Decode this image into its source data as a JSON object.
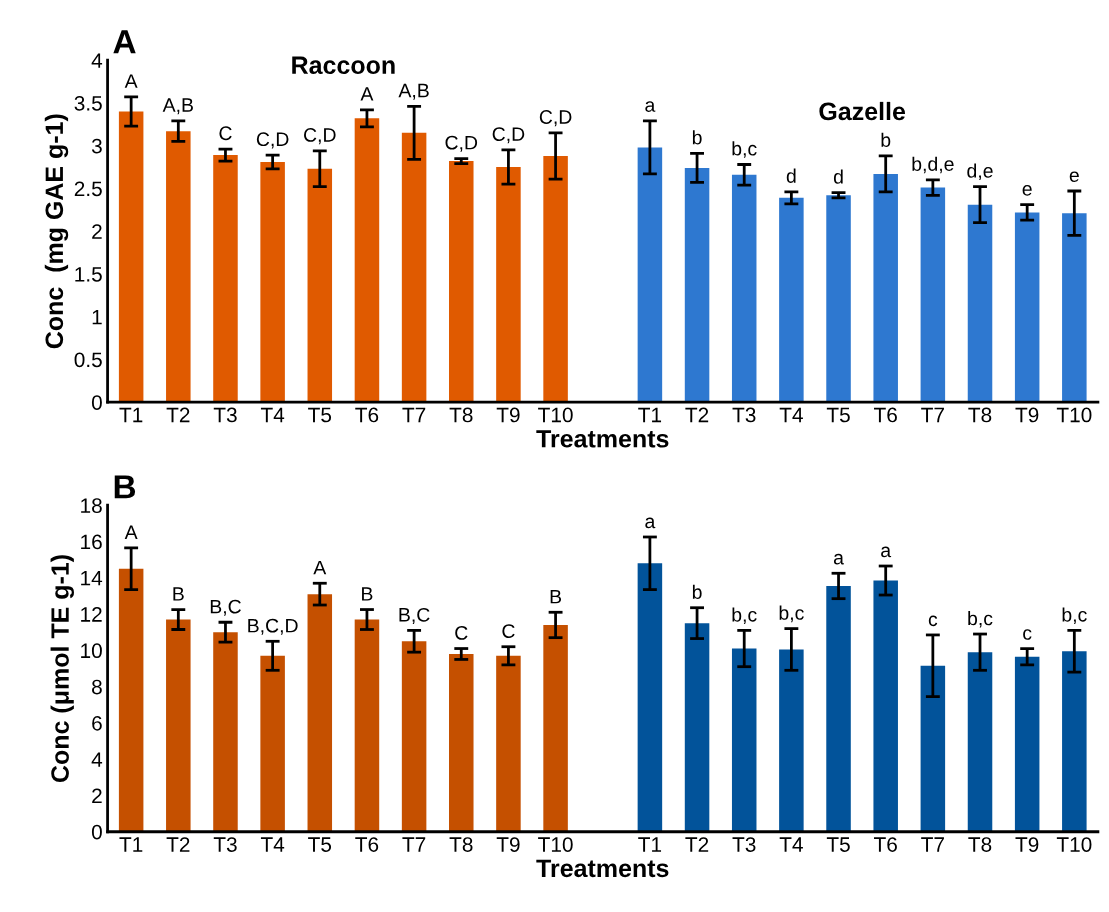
{
  "chart_data": [
    {
      "type": "bar",
      "xlabel": "Treatments",
      "ylabel": "Conc  (mg GAE g-1)",
      "annotations": [
        "A"
      ],
      "categories": [
        "T1",
        "T2",
        "T3",
        "T4",
        "T5",
        "T6",
        "T7",
        "T8",
        "T9",
        "T10",
        null,
        "T1",
        "T2",
        "T3",
        "T4",
        "T5",
        "T6",
        "T7",
        "T8",
        "T9",
        "T10"
      ],
      "series": [
        {
          "name": "Raccoon",
          "color": "#e05a00",
          "values": [
            3.4,
            3.17,
            2.89,
            2.81,
            2.73,
            3.32,
            3.15,
            2.82,
            2.75,
            2.88,
            null,
            null,
            null,
            null,
            null,
            null,
            null,
            null,
            null,
            null,
            null
          ],
          "errors": [
            0.17,
            0.12,
            0.07,
            0.08,
            0.21,
            0.1,
            0.31,
            0.03,
            0.2,
            0.27,
            null,
            null,
            null,
            null,
            null,
            null,
            null,
            null,
            null,
            null,
            null
          ],
          "value_labels": [
            "A",
            "A,B",
            "C",
            "C,D",
            "C,D",
            "A",
            "A,B",
            "C,D",
            "C,D",
            "C,D",
            null,
            null,
            null,
            null,
            null,
            null,
            null,
            null,
            null,
            null,
            null
          ]
        },
        {
          "name": "Gazelle",
          "color": "#2e78d0",
          "values": [
            null,
            null,
            null,
            null,
            null,
            null,
            null,
            null,
            null,
            null,
            null,
            2.98,
            2.74,
            2.66,
            2.39,
            2.42,
            2.67,
            2.51,
            2.31,
            2.22,
            2.21
          ],
          "errors": [
            null,
            null,
            null,
            null,
            null,
            null,
            null,
            null,
            null,
            null,
            null,
            0.31,
            0.17,
            0.12,
            0.07,
            0.03,
            0.21,
            0.09,
            0.21,
            0.09,
            0.26
          ],
          "value_labels": [
            null,
            null,
            null,
            null,
            null,
            null,
            null,
            null,
            null,
            null,
            null,
            "a",
            "b",
            "b,c",
            "d",
            "d",
            "b",
            "b,d,e",
            "d,e",
            "e",
            "e"
          ]
        }
      ],
      "ylim": [
        0,
        4
      ],
      "yticks": [
        0,
        0.5,
        1,
        1.5,
        2,
        2.5,
        3,
        3.5,
        4
      ],
      "grid": false,
      "legend": false
    },
    {
      "type": "bar",
      "xlabel": "Treatments",
      "ylabel": "Conc (μmol TE g-1)",
      "annotations": [
        "B"
      ],
      "categories": [
        "T1",
        "T2",
        "T3",
        "T4",
        "T5",
        "T6",
        "T7",
        "T8",
        "T9",
        "T10",
        null,
        "T1",
        "T2",
        "T3",
        "T4",
        "T5",
        "T6",
        "T7",
        "T8",
        "T9",
        "T10"
      ],
      "series": [
        {
          "color": "#c55000",
          "values": [
            14.5,
            11.7,
            11.0,
            9.7,
            13.1,
            11.7,
            10.5,
            9.8,
            9.7,
            11.4,
            null,
            null,
            null,
            null,
            null,
            null,
            null,
            null,
            null,
            null,
            null
          ],
          "errors": [
            1.15,
            0.55,
            0.55,
            0.8,
            0.6,
            0.55,
            0.6,
            0.3,
            0.5,
            0.7,
            null,
            null,
            null,
            null,
            null,
            null,
            null,
            null,
            null,
            null,
            null
          ],
          "value_labels": [
            "A",
            "B",
            "B,C",
            "B,C,D",
            "A",
            "B",
            "B,C",
            "C",
            "C",
            "B",
            null,
            null,
            null,
            null,
            null,
            null,
            null,
            null,
            null,
            null,
            null
          ]
        },
        {
          "color": "#02539a",
          "values": [
            null,
            null,
            null,
            null,
            null,
            null,
            null,
            null,
            null,
            null,
            null,
            14.8,
            11.5,
            10.1,
            10.05,
            13.55,
            13.85,
            9.15,
            9.9,
            9.65,
            9.95
          ],
          "errors": [
            null,
            null,
            null,
            null,
            null,
            null,
            null,
            null,
            null,
            null,
            null,
            1.45,
            0.85,
            1.0,
            1.15,
            0.7,
            0.8,
            1.7,
            1.0,
            0.45,
            1.15
          ],
          "value_labels": [
            null,
            null,
            null,
            null,
            null,
            null,
            null,
            null,
            null,
            null,
            null,
            "a",
            "b",
            "b,c",
            "b,c",
            "a",
            "a",
            "c",
            "b,c",
            "c",
            "b,c"
          ]
        }
      ],
      "ylim": [
        0,
        18
      ],
      "yticks": [
        0,
        2,
        4,
        6,
        8,
        10,
        12,
        14,
        16,
        18
      ],
      "grid": false,
      "legend": false
    }
  ]
}
